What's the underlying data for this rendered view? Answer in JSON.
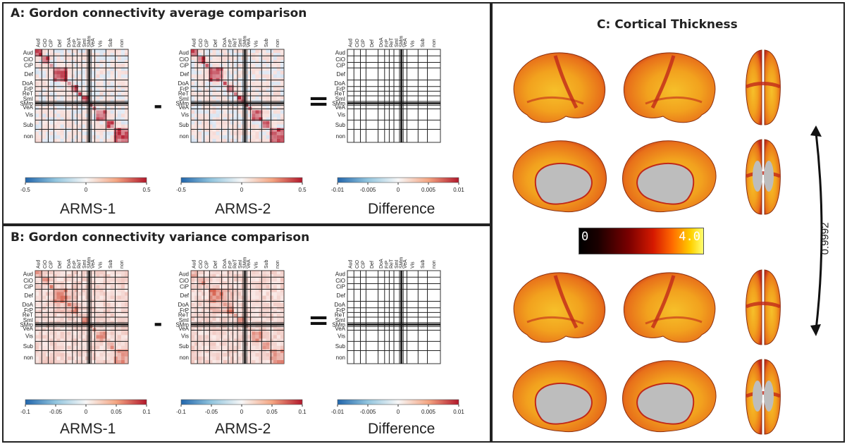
{
  "panel_a": {
    "title": "A: Gordon connectivity average comparison"
  },
  "panel_b": {
    "title": "B: Gordon connectivity variance comparison"
  },
  "panel_c": {
    "title": "C: Cortical Thickness"
  },
  "network_labels": [
    "Aud",
    "CiO",
    "CiP",
    "Def",
    "DoA",
    "FrP",
    "ReT",
    "SmI",
    "SMm",
    "VeA",
    "Vis",
    "Sub",
    "non"
  ],
  "operators": {
    "minus": "-",
    "equals": "="
  },
  "captions": {
    "arms1": "ARMS-1",
    "arms2": "ARMS-2",
    "difference": "Difference"
  },
  "colorbars": {
    "a_arms": [
      "-0.5",
      "0",
      "0.5"
    ],
    "b_arms": [
      "-0.1",
      "-0.05",
      "0",
      "0.05",
      "0.1"
    ],
    "diff": [
      "-0.01",
      "-0.005",
      "0",
      "0.005",
      "0.01"
    ]
  },
  "thickness_scale": {
    "min": "0",
    "max": "4.0"
  },
  "correlation": "0.9992",
  "colors": {
    "neg": "#2166ac",
    "pos": "#b2182b",
    "brain_light": "#f6c02a",
    "brain_mid": "#e8701a",
    "brain_dark": "#c0281a",
    "medial_wall": "#bdbdbd"
  }
}
